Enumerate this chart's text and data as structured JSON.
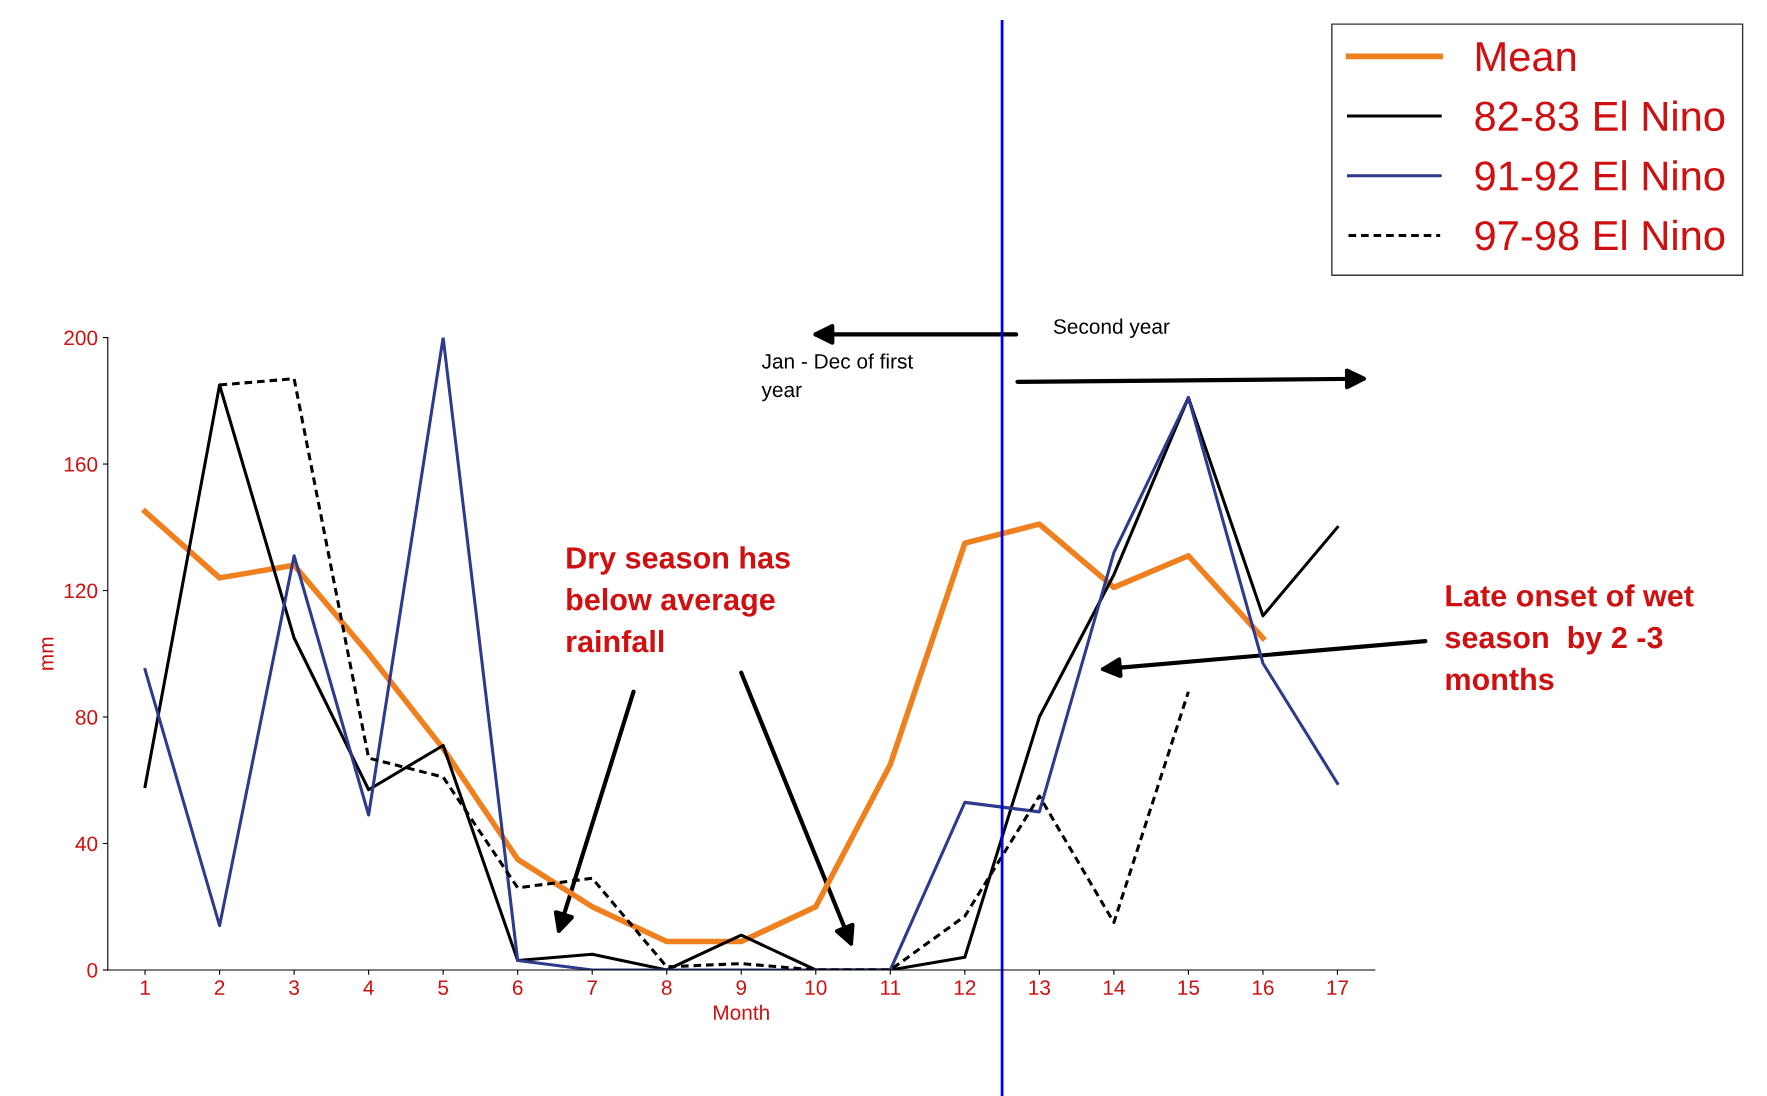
{
  "chart_data": {
    "type": "line",
    "xlabel": "Month",
    "ylabel": "mm",
    "x": [
      1,
      2,
      3,
      4,
      5,
      6,
      7,
      8,
      9,
      10,
      11,
      12,
      13,
      14,
      15,
      16,
      17
    ],
    "xlim": [
      0.5,
      17.5
    ],
    "xticks": [
      1,
      2,
      3,
      4,
      5,
      6,
      7,
      8,
      9,
      10,
      11,
      12,
      13,
      14,
      15,
      16,
      17
    ],
    "ylim": [
      0,
      200
    ],
    "yticks": [
      0,
      40,
      80,
      120,
      160,
      200
    ],
    "grid": false,
    "legend": "top right",
    "series": [
      {
        "name": "Mean",
        "color": "#f07f1e",
        "values": [
          145,
          124,
          128,
          100,
          70,
          35,
          20,
          9,
          9,
          20,
          65,
          135,
          141,
          121,
          131,
          105,
          null
        ]
      },
      {
        "name": "82-83 El Nino",
        "color": "#000000",
        "values": [
          58,
          185,
          105,
          57,
          71,
          3,
          5,
          0,
          11,
          0,
          0,
          4,
          80,
          125,
          181,
          112,
          140
        ]
      },
      {
        "name": "91-92 El Nino",
        "color": "#2e3a8c",
        "values": [
          95,
          14,
          131,
          49,
          200,
          3,
          0,
          0,
          0,
          0,
          0,
          53,
          50,
          132,
          181,
          97,
          59
        ]
      },
      {
        "name": "97-98 El Nino",
        "color": "#000000",
        "line_style": "dashed",
        "values": [
          null,
          185,
          187,
          67,
          61,
          26,
          29,
          1,
          2,
          0,
          0,
          17,
          55,
          15,
          88,
          null,
          null
        ]
      }
    ],
    "ref_lines": [
      {
        "axis": "x",
        "value": 12.5,
        "color": "#0000ee"
      }
    ],
    "annotations": [
      "Jan - Dec of first\nyear",
      "Second year",
      "Dry season has\nbelow average\nrainfall",
      "Late onset of wet\nseason  by 2 -3\nmonths"
    ]
  }
}
